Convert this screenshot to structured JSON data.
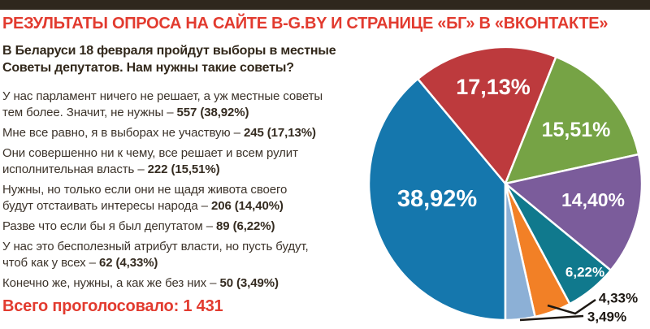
{
  "header": {
    "title": "РЕЗУЛЬТАТЫ ОПРОСА НА САЙТЕ B-G.BY И СТРАНИЦЕ «БГ» В «ВКОНТАКТЕ»",
    "accent_color": "#e23b2f"
  },
  "poll": {
    "question": "В Беларуси 18 февраля пройдут выборы в местные\nСоветы депутатов. Нам нужны такие советы?",
    "options": [
      {
        "text": "У нас парламент ничего не решает, а уж местные советы\nтем более. Значит, не нужны –",
        "value": "557 (38,92%)"
      },
      {
        "text": "Мне все равно, я в выборах не участвую –",
        "value": "245 (17,13%)"
      },
      {
        "text": "Они совершенно ни к чему, все решает и всем рулит\nисполнительная власть –",
        "value": "222 (15,51%)"
      },
      {
        "text": "Нужны, но только если они не щадя живота своего\nбудут отстаивать интересы народа –",
        "value": "206 (14,40%)"
      },
      {
        "text": "Разве что если бы я был депутатом –",
        "value": "89 (6,22%)"
      },
      {
        "text": "У нас это бесполезный атрибут власти, но пусть будут,\nчтоб как у всех –",
        "value": "62 (4,33%)"
      },
      {
        "text": "Конечно же, нужны, а как же без них –",
        "value": "50 (3,49%)"
      }
    ],
    "total_label": "Всего проголосовало: 1 431"
  },
  "chart_data": {
    "type": "pie",
    "title": "",
    "legend": "none",
    "start_angle_clockwise_from_top": 180,
    "slice_gap_color": "#ffffff",
    "slices": [
      {
        "label": "38,92%",
        "value": 38.92,
        "votes": 557,
        "color": "#1577ad",
        "label_placement": "inside"
      },
      {
        "label": "17,13%",
        "value": 17.13,
        "votes": 245,
        "color": "#bd3a3d",
        "label_placement": "inside"
      },
      {
        "label": "15,51%",
        "value": 15.51,
        "votes": 222,
        "color": "#76a345",
        "label_placement": "inside"
      },
      {
        "label": "14,40%",
        "value": 14.4,
        "votes": 206,
        "color": "#7b5c9b",
        "label_placement": "inside"
      },
      {
        "label": "6,22%",
        "value": 6.22,
        "votes": 89,
        "color": "#10798d",
        "label_placement": "inside"
      },
      {
        "label": "4,33%",
        "value": 4.33,
        "votes": 62,
        "color": "#f28026",
        "label_placement": "outside-leader"
      },
      {
        "label": "3,49%",
        "value": 3.49,
        "votes": 50,
        "color": "#8cb0d6",
        "label_placement": "outside-leader"
      }
    ]
  },
  "colors": {
    "topbar": "#2f271d",
    "heading_red": "#e23b2f",
    "body_text": "#3c332a",
    "outside_label": "#1d1813"
  }
}
